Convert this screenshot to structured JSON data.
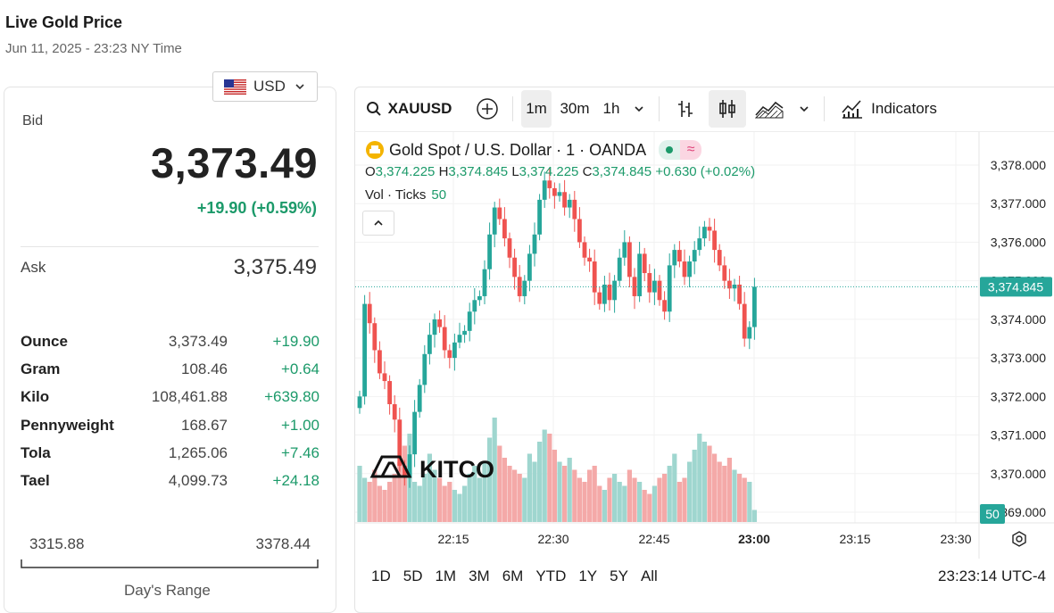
{
  "page": {
    "title": "Live Gold Price",
    "subtitle": "Jun 11, 2025 - 23:23 NY Time"
  },
  "currency": {
    "code": "USD",
    "flag_icon": "us-flag-icon"
  },
  "bid": {
    "label": "Bid",
    "value": "3,373.49",
    "change": "+19.90 (+0.59%)"
  },
  "ask": {
    "label": "Ask",
    "value": "3,375.49"
  },
  "units": [
    {
      "unit": "Ounce",
      "price": "3,373.49",
      "change": "+19.90"
    },
    {
      "unit": "Gram",
      "price": "108.46",
      "change": "+0.64"
    },
    {
      "unit": "Kilo",
      "price": "108,461.88",
      "change": "+639.80"
    },
    {
      "unit": "Pennyweight",
      "price": "168.67",
      "change": "+1.00"
    },
    {
      "unit": "Tola",
      "price": "1,265.06",
      "change": "+7.46"
    },
    {
      "unit": "Tael",
      "price": "4,099.73",
      "change": "+24.18"
    }
  ],
  "range": {
    "low": "3315.88",
    "high": "3378.44",
    "label": "Day's Range"
  },
  "toolbar": {
    "symbol": "XAUUSD",
    "intervals": [
      "1m",
      "30m",
      "1h"
    ],
    "active_interval": "1m",
    "indicators_label": "Indicators"
  },
  "legend": {
    "title": "Gold Spot / U.S. Dollar · 1 · OANDA",
    "o_label": "O",
    "o": "3,374.225",
    "h_label": "H",
    "h": "3,374.845",
    "l_label": "L",
    "l": "3,374.225",
    "c_label": "C",
    "c": "3,374.845",
    "change": "+0.630 (+0.02%)",
    "vol_label": "Vol · Ticks",
    "vol_value": "50"
  },
  "watermark": "KITCO",
  "bottom": {
    "ranges": [
      "1D",
      "5D",
      "1M",
      "3M",
      "6M",
      "YTD",
      "1Y",
      "5Y",
      "All"
    ],
    "clock": "23:23:14 UTC-4"
  },
  "colors": {
    "up": "#26a69a",
    "down": "#ef5350",
    "accent": "#1c9a6a"
  },
  "chart_data": {
    "type": "candlestick",
    "price_axis_ticks": [
      "3,378.000",
      "3,377.000",
      "3,376.000",
      "3,375.000",
      "3,374.000",
      "3,373.000",
      "3,372.000",
      "3,371.000",
      "3,370.000",
      "3,369.000"
    ],
    "time_axis_ticks": [
      "22:15",
      "22:30",
      "22:45",
      "23:00",
      "23:15",
      "23:30"
    ],
    "last_price_label": "3,374.845",
    "last_volume_label": "50",
    "ylim": [
      3369,
      3378
    ],
    "close": [
      3372.0,
      3374.4,
      3373.9,
      3373.2,
      3372.6,
      3372.4,
      3371.8,
      3371.4,
      3370.2,
      3369.9,
      3370.5,
      3371.6,
      3372.3,
      3373.1,
      3373.6,
      3374.0,
      3373.8,
      3373.2,
      3373.0,
      3373.4,
      3373.6,
      3373.7,
      3374.2,
      3374.5,
      3374.6,
      3375.3,
      3376.2,
      3376.9,
      3376.6,
      3376.1,
      3375.6,
      3375.1,
      3374.6,
      3375.0,
      3375.7,
      3376.2,
      3377.1,
      3377.6,
      3377.4,
      3377.2,
      3377.3,
      3376.9,
      3377.1,
      3376.6,
      3376.0,
      3375.6,
      3375.5,
      3374.7,
      3374.4,
      3374.9,
      3374.5,
      3375.0,
      3375.6,
      3376.0,
      3375.1,
      3374.6,
      3375.7,
      3375.2,
      3374.7,
      3375.0,
      3374.5,
      3374.2,
      3375.4,
      3375.8,
      3375.5,
      3375.1,
      3375.5,
      3375.8,
      3376.1,
      3376.4,
      3376.3,
      3375.8,
      3375.4,
      3375.0,
      3374.8,
      3374.9,
      3374.4,
      3373.5,
      3373.8,
      3374.845
    ],
    "volume": [
      28,
      22,
      20,
      26,
      18,
      16,
      20,
      24,
      30,
      38,
      44,
      20,
      18,
      24,
      34,
      26,
      22,
      18,
      20,
      16,
      14,
      18,
      24,
      28,
      22,
      30,
      42,
      52,
      38,
      32,
      28,
      26,
      24,
      22,
      34,
      30,
      40,
      46,
      44,
      36,
      30,
      28,
      32,
      26,
      22,
      20,
      26,
      28,
      18,
      16,
      22,
      24,
      20,
      18,
      26,
      22,
      20,
      16,
      14,
      18,
      22,
      24,
      28,
      34,
      20,
      22,
      30,
      36,
      44,
      40,
      38,
      34,
      30,
      28,
      32,
      26,
      24,
      22,
      20,
      6
    ]
  }
}
